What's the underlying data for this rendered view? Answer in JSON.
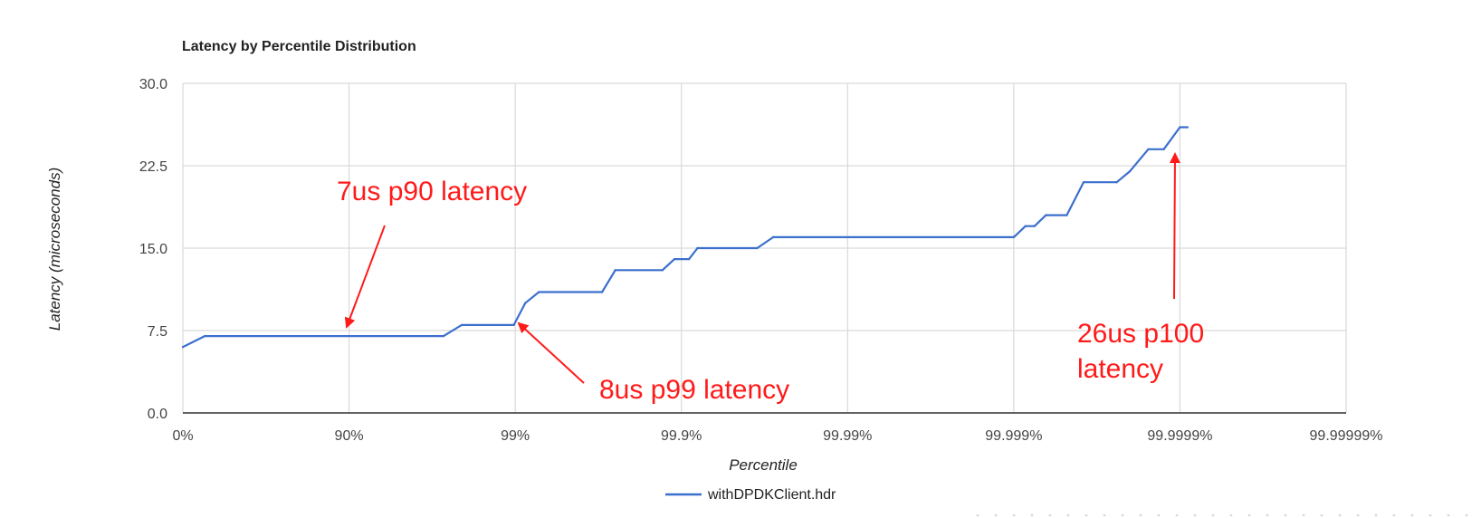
{
  "chart_data": {
    "type": "line",
    "title": "Latency by Percentile Distribution",
    "xlabel": "Percentile",
    "ylabel": "Latency (microseconds)",
    "x_scale": "log10(1/(1-percentile))",
    "x_ticks": [
      {
        "value": "0%",
        "label": "0%"
      },
      {
        "value": "90%",
        "label": "90%"
      },
      {
        "value": "99%",
        "label": "99%"
      },
      {
        "value": "99.9%",
        "label": "99.9%"
      },
      {
        "value": "99.99%",
        "label": "99.99%"
      },
      {
        "value": "99.999%",
        "label": "99.999%"
      },
      {
        "value": "99.9999%",
        "label": "99.9999%"
      },
      {
        "value": "99.99999%",
        "label": "99.99999%"
      }
    ],
    "y_ticks": [
      "0.0",
      "7.5",
      "15.0",
      "22.5",
      "30.0"
    ],
    "ylim": [
      0,
      30
    ],
    "grid": true,
    "legend_position": "bottom",
    "series": [
      {
        "name": "withDPDKClient.hdr",
        "color": "#3b6fce",
        "points": [
          {
            "x": "0%",
            "y": 6
          },
          {
            "x": "26.2%",
            "y": 7
          },
          {
            "x": "97.3%",
            "y": 7
          },
          {
            "x": "97.9%",
            "y": 8
          },
          {
            "x": "98.98%",
            "y": 8
          },
          {
            "x": "99.13%",
            "y": 10
          },
          {
            "x": "99.28%",
            "y": 11
          },
          {
            "x": "99.70%",
            "y": 11
          },
          {
            "x": "99.75%",
            "y": 13
          },
          {
            "x": "99.87%",
            "y": 13
          },
          {
            "x": "99.89%",
            "y": 14
          },
          {
            "x": "99.91%",
            "y": 14
          },
          {
            "x": "99.92%",
            "y": 15
          },
          {
            "x": "99.965%",
            "y": 15
          },
          {
            "x": "99.972%",
            "y": 16
          },
          {
            "x": "99.9990%",
            "y": 16
          },
          {
            "x": "99.99915%",
            "y": 17
          },
          {
            "x": "99.99925%",
            "y": 17
          },
          {
            "x": "99.99936%",
            "y": 18
          },
          {
            "x": "99.99952%",
            "y": 18
          },
          {
            "x": "99.99962%",
            "y": 21
          },
          {
            "x": "99.99976%",
            "y": 21
          },
          {
            "x": "99.99980%",
            "y": 22
          },
          {
            "x": "99.999845%",
            "y": 24
          },
          {
            "x": "99.999875%",
            "y": 24
          },
          {
            "x": "99.99990%",
            "y": 26
          },
          {
            "x": "99.99991%",
            "y": 26
          }
        ]
      }
    ],
    "annotations": [
      {
        "text": "7us p90 latency",
        "color": "#ff1a1a"
      },
      {
        "text": "8us p99 latency",
        "color": "#ff1a1a"
      },
      {
        "text_lines": [
          "26us p100",
          "latency"
        ],
        "color": "#ff1a1a"
      }
    ]
  }
}
